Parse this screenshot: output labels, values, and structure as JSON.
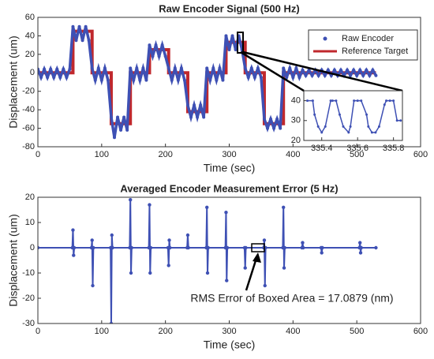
{
  "chart_data": [
    {
      "type": "line",
      "title": "Raw Encoder Signal (500 Hz)",
      "xlabel": "Time (sec)",
      "ylabel": "Displacement (um)",
      "xlim": [
        0,
        600
      ],
      "ylim": [
        -80,
        60
      ],
      "xticks": [
        0,
        100,
        200,
        300,
        400,
        500,
        600
      ],
      "yticks": [
        -80,
        -60,
        -40,
        -20,
        0,
        20,
        40,
        60
      ],
      "legend": "northeast",
      "series": [
        {
          "name": "Raw Encoder",
          "type": "scatter",
          "color": "#3e50b4",
          "x": [
            0,
            5,
            10,
            15,
            20,
            25,
            30,
            35,
            40,
            45,
            50,
            55,
            60,
            65,
            70,
            75,
            80,
            85,
            90,
            95,
            100,
            105,
            110,
            115,
            120,
            125,
            130,
            135,
            140,
            145,
            150,
            155,
            160,
            165,
            170,
            175,
            180,
            185,
            190,
            195,
            200,
            205,
            210,
            215,
            220,
            225,
            230,
            235,
            240,
            245,
            250,
            255,
            260,
            265,
            270,
            275,
            280,
            285,
            290,
            295,
            300,
            305,
            310,
            315,
            320,
            325,
            330,
            335,
            340,
            345,
            350,
            355,
            360,
            365,
            370,
            375,
            380,
            385,
            390,
            395,
            400,
            405,
            410,
            415,
            420,
            425,
            430,
            435,
            440,
            445,
            450,
            455,
            460,
            465,
            470,
            475,
            480,
            485,
            490,
            495,
            500,
            505,
            510,
            515,
            520,
            525,
            530
          ],
          "values": [
            4,
            -5,
            4,
            -5,
            4,
            -5,
            4,
            -5,
            4,
            -5,
            4,
            50,
            35,
            50,
            35,
            50,
            35,
            5,
            -8,
            5,
            -8,
            5,
            -8,
            -48,
            -70,
            -48,
            -62,
            -48,
            -62,
            5,
            -8,
            5,
            -8,
            5,
            -8,
            30,
            18,
            30,
            18,
            30,
            18,
            5,
            -8,
            5,
            -8,
            5,
            -8,
            -35,
            -48,
            -35,
            -48,
            -35,
            -48,
            5,
            -8,
            5,
            -8,
            5,
            -8,
            40,
            25,
            40,
            25,
            40,
            25,
            5,
            -5,
            5,
            -5,
            5,
            -5,
            -50,
            -60,
            -50,
            -60,
            -50,
            -60,
            5,
            -5,
            5,
            -5,
            5,
            -5,
            3,
            -3,
            3,
            -3,
            3,
            -3,
            3,
            -3,
            3,
            -3,
            3,
            -3,
            3,
            -3,
            3,
            -3,
            3,
            -3,
            3,
            -3,
            3,
            -3,
            3,
            -3
          ]
        },
        {
          "name": "Reference Target",
          "type": "line",
          "color": "#c0282d",
          "x": [
            0,
            55,
            55,
            85,
            85,
            115,
            115,
            145,
            145,
            175,
            175,
            205,
            205,
            235,
            235,
            265,
            265,
            295,
            295,
            325,
            325,
            355,
            355,
            385,
            385,
            530
          ],
          "values": [
            0,
            0,
            45,
            45,
            0,
            0,
            -55,
            -55,
            0,
            0,
            25,
            25,
            0,
            0,
            -42,
            -42,
            0,
            0,
            33,
            33,
            0,
            0,
            -55,
            -55,
            0,
            0
          ]
        }
      ]
    },
    {
      "type": "line",
      "xlim": [
        335.3,
        335.85
      ],
      "ylim": [
        20,
        45
      ],
      "xticks": [
        335.4,
        335.6,
        335.8
      ],
      "yticks": [
        20,
        30,
        40
      ],
      "series": [
        {
          "type": "line",
          "color": "#3e50b4",
          "x": [
            335.32,
            335.35,
            335.36,
            335.38,
            335.4,
            335.42,
            335.45,
            335.46,
            335.48,
            335.5,
            335.52,
            335.55,
            335.56,
            335.58,
            335.6,
            335.62,
            335.65,
            335.66,
            335.68,
            335.7,
            335.72,
            335.75,
            335.76,
            335.78,
            335.8,
            335.82,
            335.84
          ],
          "values": [
            40,
            40,
            33,
            27,
            24,
            27,
            40,
            40,
            40,
            33,
            27,
            24,
            27,
            40,
            40,
            40,
            33,
            27,
            24,
            24,
            27,
            38,
            40,
            40,
            40,
            30,
            30
          ]
        }
      ]
    },
    {
      "type": "line",
      "title": "Averaged Encoder Measurement Error (5 Hz)",
      "xlabel": "Time (sec)",
      "ylabel": "Displacement (um)",
      "xlim": [
        0,
        600
      ],
      "ylim": [
        -30,
        20
      ],
      "xticks": [
        0,
        100,
        200,
        300,
        400,
        500,
        600
      ],
      "yticks": [
        -30,
        -20,
        -10,
        0,
        10,
        20
      ],
      "annotation": "RMS Error of Boxed Area = 17.0879 (nm)",
      "series": [
        {
          "type": "line",
          "color": "#3e50b4",
          "x": [
            0,
            54,
            55,
            56,
            57,
            84,
            85,
            86,
            87,
            114,
            115,
            116,
            117,
            144,
            145,
            146,
            147,
            174,
            175,
            176,
            177,
            204,
            205,
            206,
            207,
            234,
            235,
            236,
            264,
            265,
            266,
            267,
            294,
            295,
            296,
            297,
            324,
            325,
            326,
            354,
            355,
            356,
            357,
            384,
            385,
            386,
            387,
            414,
            415,
            416,
            444,
            445,
            446,
            504,
            505,
            506,
            507,
            530
          ],
          "values": [
            0,
            0,
            7,
            -3,
            0,
            0,
            3,
            -15,
            0,
            0,
            -30,
            5,
            0,
            0,
            19,
            -10,
            0,
            0,
            17,
            -10,
            0,
            0,
            -7,
            3,
            0,
            0,
            5,
            0,
            0,
            16,
            -10,
            0,
            0,
            14,
            -13,
            0,
            0,
            -8,
            0,
            0,
            3,
            -15,
            0,
            0,
            16,
            -8,
            0,
            0,
            2,
            0,
            0,
            -2,
            0,
            0,
            2,
            -2,
            0,
            0
          ]
        }
      ]
    }
  ]
}
